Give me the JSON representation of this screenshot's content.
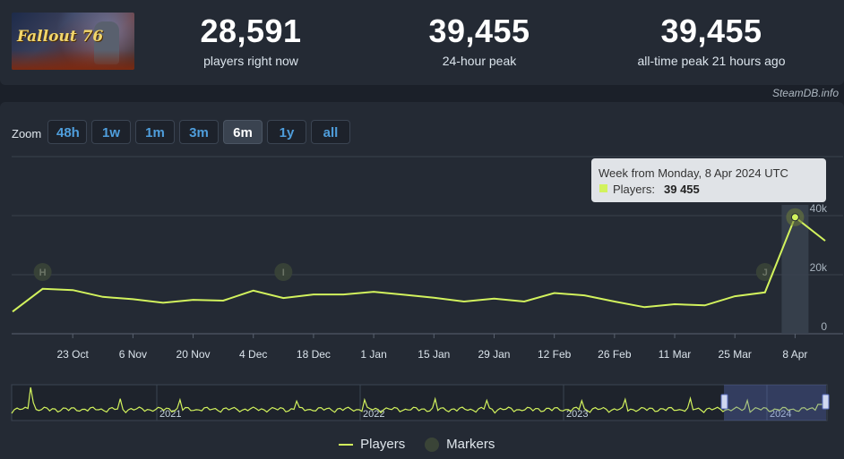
{
  "header": {
    "logo_text": "Fallout 76",
    "stats": [
      {
        "value": "28,591",
        "label": "players right now"
      },
      {
        "value": "39,455",
        "label": "24-hour peak"
      },
      {
        "value": "39,455",
        "label": "all-time peak 21 hours ago"
      }
    ],
    "credit": "SteamDB.info"
  },
  "zoom": {
    "label": "Zoom",
    "buttons": [
      "48h",
      "1w",
      "1m",
      "3m",
      "6m",
      "1y",
      "all"
    ],
    "active": "6m"
  },
  "tooltip": {
    "title": "Week from Monday, 8 Apr 2024 UTC",
    "series_label": "Players:",
    "value": "39 455"
  },
  "colors": {
    "series": "#d2f25d",
    "marker": "#3a4437",
    "background": "#242a34"
  },
  "chart_data": {
    "type": "line",
    "x_tick_labels": [
      "23 Oct",
      "6 Nov",
      "20 Nov",
      "4 Dec",
      "18 Dec",
      "1 Jan",
      "15 Jan",
      "29 Jan",
      "12 Feb",
      "26 Feb",
      "11 Mar",
      "25 Mar",
      "8 Apr"
    ],
    "y_tick_labels": [
      "0",
      "20k",
      "40k"
    ],
    "ylim": [
      0,
      60000
    ],
    "grid": true,
    "legend_placement": "bottom",
    "series": [
      {
        "name": "Players",
        "points": [
          {
            "x": "2023-10-09",
            "y": 7500
          },
          {
            "x": "2023-10-16",
            "y": 15200
          },
          {
            "x": "2023-10-23",
            "y": 14800
          },
          {
            "x": "2023-10-30",
            "y": 12500
          },
          {
            "x": "2023-11-06",
            "y": 11700
          },
          {
            "x": "2023-11-13",
            "y": 10500
          },
          {
            "x": "2023-11-20",
            "y": 11500
          },
          {
            "x": "2023-11-27",
            "y": 11200
          },
          {
            "x": "2023-12-04",
            "y": 14600
          },
          {
            "x": "2023-12-11",
            "y": 12100
          },
          {
            "x": "2023-12-18",
            "y": 13300
          },
          {
            "x": "2023-12-25",
            "y": 13300
          },
          {
            "x": "2024-01-01",
            "y": 14200
          },
          {
            "x": "2024-01-08",
            "y": 13200
          },
          {
            "x": "2024-01-15",
            "y": 12200
          },
          {
            "x": "2024-01-22",
            "y": 10900
          },
          {
            "x": "2024-01-29",
            "y": 11900
          },
          {
            "x": "2024-02-05",
            "y": 10900
          },
          {
            "x": "2024-02-12",
            "y": 13800
          },
          {
            "x": "2024-02-19",
            "y": 13000
          },
          {
            "x": "2024-02-26",
            "y": 10900
          },
          {
            "x": "2024-03-04",
            "y": 9000
          },
          {
            "x": "2024-03-11",
            "y": 10000
          },
          {
            "x": "2024-03-18",
            "y": 9600
          },
          {
            "x": "2024-03-25",
            "y": 12700
          },
          {
            "x": "2024-04-01",
            "y": 14000
          },
          {
            "x": "2024-04-08",
            "y": 39455
          },
          {
            "x": "2024-04-15",
            "y": 31500
          }
        ]
      }
    ],
    "markers": [
      {
        "label": "H",
        "x": "2023-10-16"
      },
      {
        "label": "I",
        "x": "2023-12-11"
      },
      {
        "label": "J",
        "x": "2024-04-01"
      }
    ],
    "navigator": {
      "year_labels": [
        "2021",
        "2022",
        "2023",
        "2024"
      ]
    }
  },
  "legend": {
    "players": "Players",
    "markers": "Markers"
  }
}
